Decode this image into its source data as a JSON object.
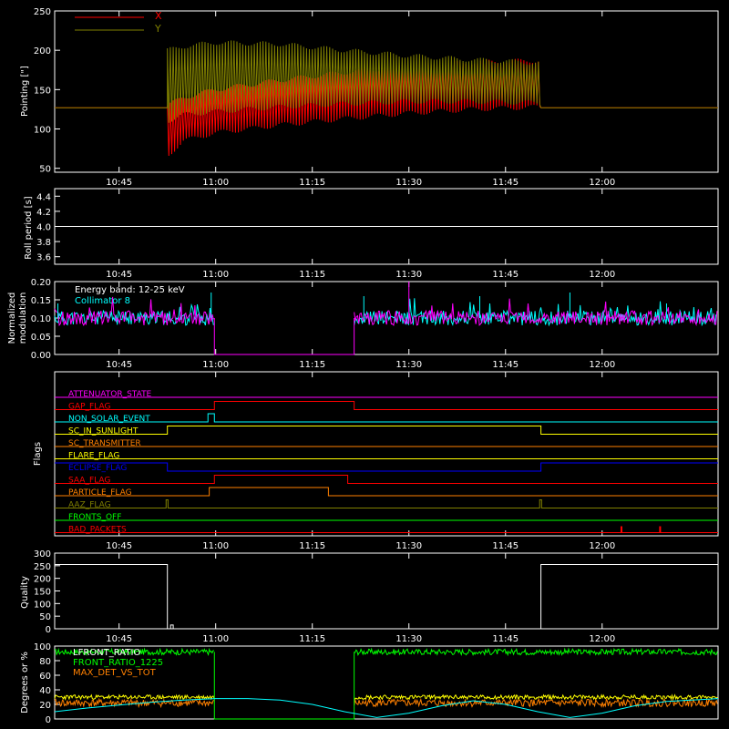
{
  "x_axis": {
    "tick_labels": [
      "10:45",
      "11:00",
      "11:15",
      "11:30",
      "11:45",
      "12:00"
    ],
    "tick_minutes": [
      645,
      660,
      675,
      690,
      705,
      720
    ],
    "range_minutes": [
      635,
      738
    ]
  },
  "colors": {
    "axes": "#ffffff",
    "red": "#ff0000",
    "olive": "#808000",
    "magenta": "#ff00ff",
    "cyan": "#00ffff",
    "orange": "#ff8000",
    "yellow": "#ffff00",
    "blue": "#0000ff",
    "green": "#00ff00",
    "brown": "#b06000"
  },
  "chart_data": [
    {
      "id": "pointing",
      "type": "line",
      "title": "",
      "ylabel": "Pointing [\"]",
      "ylim": [
        45,
        250
      ],
      "yticks": [
        50,
        100,
        150,
        200,
        250
      ],
      "legend": "top-left",
      "series": [
        {
          "name": "X",
          "color": "#ff0000",
          "baseline": 127,
          "active_range": [
            652.5,
            710.5
          ],
          "envelope_x": [
            652.5,
            655,
            660,
            670,
            680,
            690,
            700,
            710.5
          ],
          "envelope_low": [
            65,
            85,
            95,
            105,
            113,
            120,
            125,
            128
          ],
          "envelope_high": [
            130,
            140,
            150,
            162,
            172,
            180,
            185,
            187
          ]
        },
        {
          "name": "Y",
          "color": "#808000",
          "baseline": 127,
          "active_range": [
            652.5,
            710.5
          ],
          "envelope_x": [
            652.5,
            655,
            660,
            670,
            680,
            690,
            700,
            710.5
          ],
          "envelope_low": [
            110,
            118,
            122,
            128,
            132,
            135,
            135,
            133
          ],
          "envelope_high": [
            200,
            205,
            210,
            208,
            200,
            193,
            188,
            184
          ]
        }
      ]
    },
    {
      "id": "roll",
      "type": "line",
      "ylabel": "Roll period [s]",
      "ylim": [
        3.5,
        4.5
      ],
      "yticks": [
        3.6,
        3.8,
        4.0,
        4.2,
        4.4
      ],
      "series": [
        {
          "name": "",
          "color": "#ffffff",
          "x": [
            635,
            738
          ],
          "values": [
            4.0,
            4.0
          ]
        }
      ]
    },
    {
      "id": "modulation",
      "type": "line",
      "ylabel": "Normalized modulation",
      "ylim": [
        0,
        0.2
      ],
      "yticks": [
        "0.00",
        "0.05",
        "0.10",
        "0.15",
        "0.20"
      ],
      "legend_entries": [
        {
          "text": "Energy band: 12-25 keV",
          "color": "#ffffff"
        },
        {
          "text": "Collimator 8",
          "color": "#00ffff"
        }
      ],
      "segments": [
        [
          635,
          659.8
        ],
        [
          681.5,
          738
        ]
      ],
      "mean": 0.1,
      "spikes": [
        [
          635.5,
          0.14
        ],
        [
          659.3,
          0.17
        ],
        [
          683,
          0.16
        ],
        [
          690,
          0.2
        ],
        [
          701,
          0.16
        ],
        [
          715,
          0.17
        ],
        [
          730,
          0.14
        ]
      ]
    },
    {
      "id": "flags",
      "type": "line",
      "ylabel": "Flags",
      "flags": [
        {
          "name": "ATTENUATOR_STATE",
          "color": "#ff00ff",
          "steps": []
        },
        {
          "name": "GAP_FLAG",
          "color": "#ff0000",
          "steps": [
            [
              659.8,
              681.5
            ]
          ]
        },
        {
          "name": "NON_SOLAR_EVENT",
          "color": "#00ffff",
          "steps": [
            [
              658.8,
              659.8
            ]
          ]
        },
        {
          "name": "SC_IN_SUNLIGHT",
          "color": "#ffff00",
          "steps": [
            [
              652.5,
              710.5
            ]
          ]
        },
        {
          "name": "SC_TRANSMITTER",
          "color": "#ff8000",
          "steps": []
        },
        {
          "name": "FLARE_FLAG",
          "color": "#ffff00",
          "steps": []
        },
        {
          "name": "ECLIPSE_FLAG",
          "color": "#0000ff",
          "inverse": true,
          "steps": [
            [
              652.5,
              710.5
            ]
          ]
        },
        {
          "name": "SAA_FLAG",
          "color": "#ff0000",
          "steps": [
            [
              659.8,
              680.5
            ]
          ]
        },
        {
          "name": "PARTICLE_FLAG",
          "color": "#ff8000",
          "steps": [
            [
              659,
              677.5
            ]
          ]
        },
        {
          "name": "AAZ_FLAG",
          "color": "#808000",
          "steps": [
            [
              652.3,
              652.6
            ],
            [
              710.3,
              710.6
            ]
          ]
        },
        {
          "name": "FRONTS_OFF",
          "color": "#00ff00",
          "steps": []
        },
        {
          "name": "BAD_PACKETS",
          "color": "#ff0000",
          "spikes": [
            723,
            729
          ]
        }
      ]
    },
    {
      "id": "quality",
      "type": "line",
      "ylabel": "Quality",
      "ylim": [
        0,
        300
      ],
      "yticks": [
        0,
        50,
        100,
        150,
        200,
        250,
        300
      ],
      "series": [
        {
          "name": "",
          "color": "#ffffff",
          "x": [
            635,
            652.5,
            652.5,
            653,
            653,
            653.4,
            653.4,
            710.5,
            710.5,
            738
          ],
          "values": [
            255,
            255,
            0,
            0,
            15,
            15,
            0,
            0,
            255,
            255
          ]
        }
      ]
    },
    {
      "id": "degrees",
      "type": "line",
      "ylabel": "Degrees or %",
      "ylim": [
        0,
        100
      ],
      "yticks": [
        0,
        20,
        40,
        60,
        80,
        100
      ],
      "legend_entries": [
        {
          "text": "LFRONT_RATIO",
          "color": "#ffffff"
        },
        {
          "text": "FRONT_RATIO_1225",
          "color": "#00ff00"
        },
        {
          "text": "MAX_DET_VS_TOT",
          "color": "#ff8000"
        }
      ],
      "segments": [
        [
          635,
          659.8
        ],
        [
          681.5,
          738
        ]
      ],
      "levels": {
        "green": 92,
        "yellow": 30,
        "orange": 22
      },
      "cyan_series": {
        "color": "#00ffff",
        "x": [
          635,
          640,
          645,
          650,
          655,
          660,
          665,
          670,
          675,
          680,
          685,
          690,
          695,
          700,
          705,
          710,
          715,
          720,
          725,
          730,
          738
        ],
        "values": [
          10,
          15,
          19,
          23,
          26,
          28,
          28,
          26,
          20,
          10,
          2,
          8,
          18,
          25,
          20,
          10,
          2,
          8,
          18,
          24,
          28
        ]
      }
    }
  ]
}
